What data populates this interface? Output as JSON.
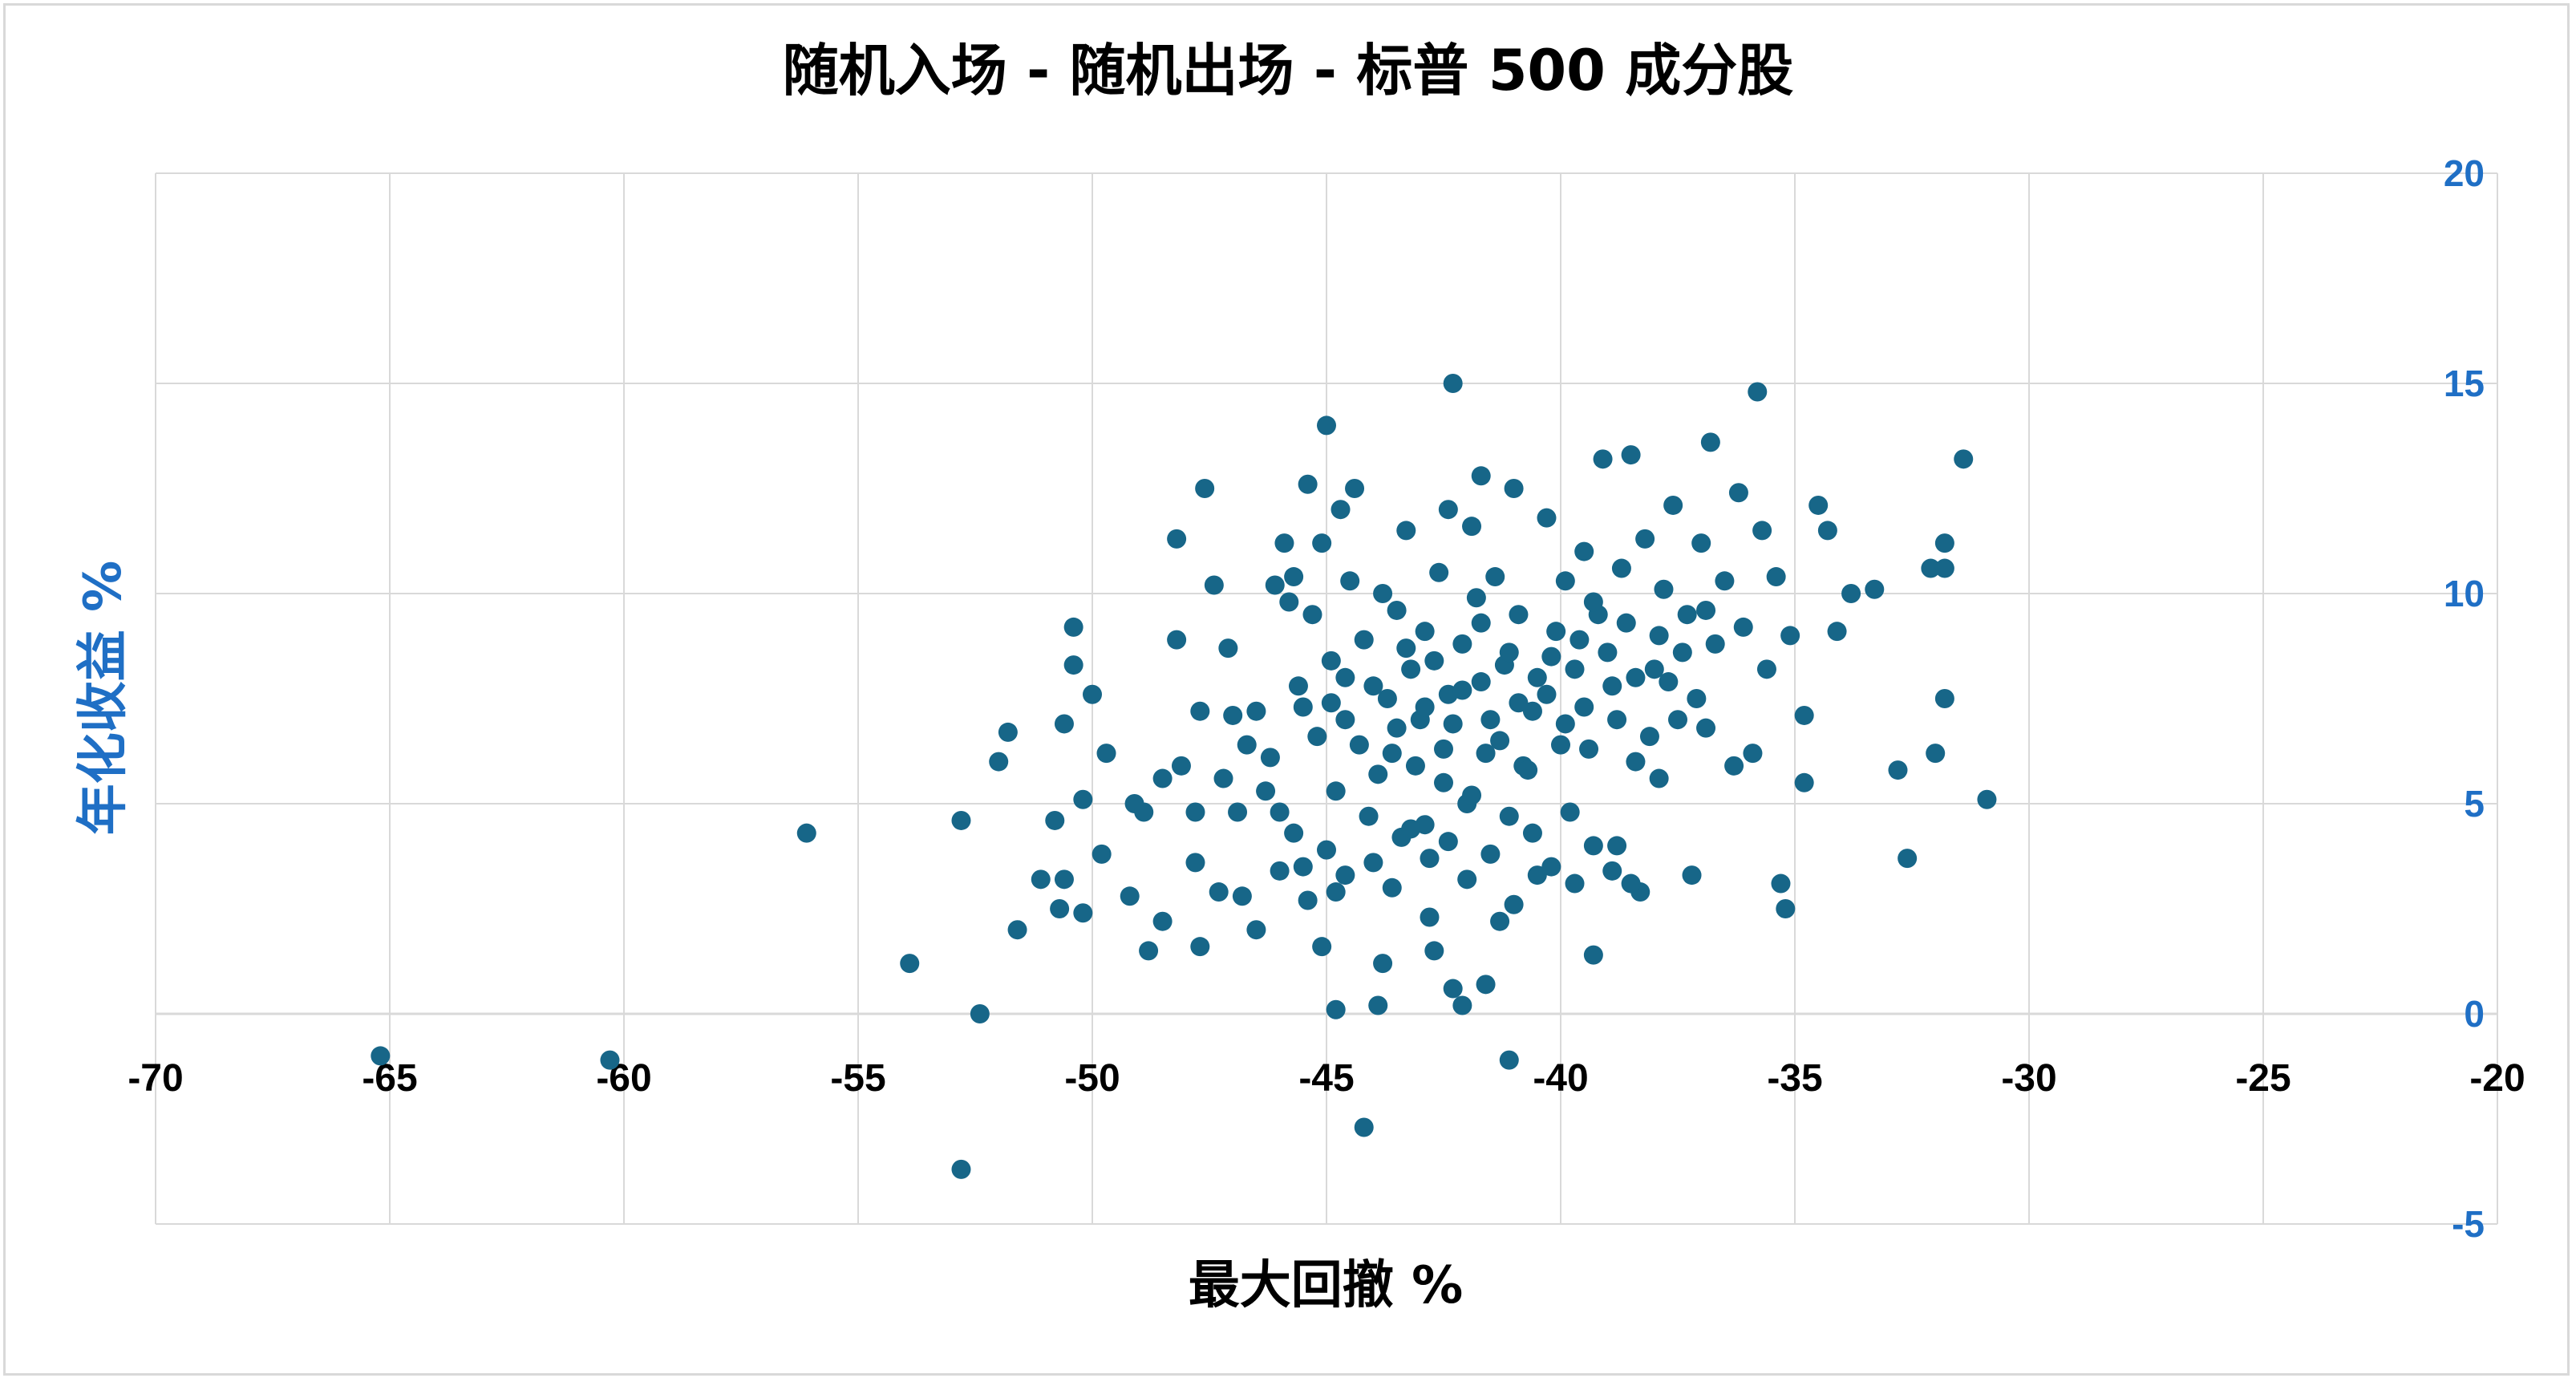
{
  "chart_data": {
    "type": "scatter",
    "title": "随机入场 - 随机出场 - 标普 500 成分股",
    "xlabel": "最大回撤 %",
    "ylabel": "年化收益 %",
    "xlim": [
      -70,
      -20
    ],
    "ylim": [
      -5,
      20
    ],
    "x_ticks": [
      "-70",
      "-65",
      "-60",
      "-55",
      "-50",
      "-45",
      "-40",
      "-35",
      "-30",
      "-25",
      "-20"
    ],
    "y_ticks": [
      "-5",
      "0",
      "5",
      "10",
      "15",
      "20"
    ],
    "y_axis_side": "right",
    "grid": true,
    "colors": {
      "points": "#176688",
      "y_axis_text": "#1f6fc5",
      "grid": "#d9d9d9"
    },
    "series": [
      {
        "points": [
          [
            -65.2,
            -1.0
          ],
          [
            -60.3,
            -1.1
          ],
          [
            -56.1,
            4.3
          ],
          [
            -53.9,
            1.2
          ],
          [
            -52.8,
            4.6
          ],
          [
            -52.8,
            -3.7
          ],
          [
            -52.4,
            0.0
          ],
          [
            -52.0,
            6.0
          ],
          [
            -51.8,
            6.7
          ],
          [
            -51.6,
            2.0
          ],
          [
            -51.1,
            3.2
          ],
          [
            -50.8,
            4.6
          ],
          [
            -50.7,
            2.5
          ],
          [
            -50.6,
            6.9
          ],
          [
            -50.6,
            3.2
          ],
          [
            -50.4,
            9.2
          ],
          [
            -50.4,
            8.3
          ],
          [
            -50.2,
            5.1
          ],
          [
            -50.2,
            2.4
          ],
          [
            -50.0,
            7.6
          ],
          [
            -49.8,
            3.8
          ],
          [
            -49.7,
            6.2
          ],
          [
            -49.2,
            2.8
          ],
          [
            -49.1,
            5.0
          ],
          [
            -48.9,
            4.8
          ],
          [
            -48.8,
            1.5
          ],
          [
            -48.5,
            5.6
          ],
          [
            -48.5,
            2.2
          ],
          [
            -48.2,
            11.3
          ],
          [
            -48.2,
            8.9
          ],
          [
            -48.1,
            5.9
          ],
          [
            -47.8,
            4.8
          ],
          [
            -47.8,
            3.6
          ],
          [
            -47.7,
            7.2
          ],
          [
            -47.6,
            12.5
          ],
          [
            -47.7,
            1.6
          ],
          [
            -47.4,
            10.2
          ],
          [
            -47.3,
            2.9
          ],
          [
            -47.2,
            5.6
          ],
          [
            -47.1,
            8.7
          ],
          [
            -47.0,
            7.1
          ],
          [
            -46.9,
            4.8
          ],
          [
            -46.8,
            2.8
          ],
          [
            -46.7,
            6.4
          ],
          [
            -46.5,
            7.2
          ],
          [
            -46.5,
            2.0
          ],
          [
            -46.2,
            6.1
          ],
          [
            -46.1,
            10.2
          ],
          [
            -46.0,
            4.8
          ],
          [
            -45.9,
            11.2
          ],
          [
            -45.8,
            9.8
          ],
          [
            -45.7,
            10.4
          ],
          [
            -45.6,
            7.8
          ],
          [
            -45.5,
            3.5
          ],
          [
            -45.4,
            12.6
          ],
          [
            -45.3,
            9.5
          ],
          [
            -45.1,
            11.2
          ],
          [
            -45.0,
            14.0
          ],
          [
            -45.1,
            1.6
          ],
          [
            -44.9,
            7.4
          ],
          [
            -44.8,
            5.3
          ],
          [
            -44.8,
            2.9
          ],
          [
            -44.8,
            0.1
          ],
          [
            -44.7,
            12.0
          ],
          [
            -44.6,
            8.0
          ],
          [
            -44.5,
            10.3
          ],
          [
            -44.4,
            12.5
          ],
          [
            -44.2,
            -2.7
          ],
          [
            -44.0,
            7.8
          ],
          [
            -44.0,
            3.6
          ],
          [
            -43.8,
            10.0
          ],
          [
            -43.8,
            1.2
          ],
          [
            -43.9,
            0.2
          ],
          [
            -43.6,
            6.2
          ],
          [
            -43.5,
            9.6
          ],
          [
            -43.4,
            4.2
          ],
          [
            -43.3,
            11.5
          ],
          [
            -43.2,
            8.2
          ],
          [
            -43.0,
            7.0
          ],
          [
            -42.9,
            9.1
          ],
          [
            -42.9,
            4.5
          ],
          [
            -42.8,
            2.3
          ],
          [
            -42.7,
            1.5
          ],
          [
            -42.6,
            10.5
          ],
          [
            -42.5,
            6.3
          ],
          [
            -42.4,
            12.0
          ],
          [
            -42.4,
            7.6
          ],
          [
            -42.3,
            15.0
          ],
          [
            -42.3,
            0.6
          ],
          [
            -42.1,
            8.8
          ],
          [
            -42.1,
            0.2
          ],
          [
            -42.0,
            5.0
          ],
          [
            -41.9,
            11.6
          ],
          [
            -41.8,
            9.9
          ],
          [
            -41.7,
            12.8
          ],
          [
            -41.7,
            7.9
          ],
          [
            -41.6,
            6.2
          ],
          [
            -41.6,
            0.7
          ],
          [
            -41.4,
            10.4
          ],
          [
            -41.3,
            2.2
          ],
          [
            -41.2,
            8.3
          ],
          [
            -41.1,
            4.7
          ],
          [
            -41.0,
            12.5
          ],
          [
            -41.1,
            -1.1
          ],
          [
            -40.9,
            9.5
          ],
          [
            -40.8,
            5.9
          ],
          [
            -40.6,
            7.2
          ],
          [
            -40.5,
            3.3
          ],
          [
            -40.3,
            11.8
          ],
          [
            -40.2,
            8.5
          ],
          [
            -40.0,
            6.4
          ],
          [
            -39.9,
            10.3
          ],
          [
            -39.8,
            4.8
          ],
          [
            -39.6,
            8.9
          ],
          [
            -39.5,
            11.0
          ],
          [
            -39.4,
            6.3
          ],
          [
            -39.3,
            1.4
          ],
          [
            -39.2,
            9.5
          ],
          [
            -39.1,
            13.2
          ],
          [
            -38.9,
            7.8
          ],
          [
            -38.8,
            4.0
          ],
          [
            -38.7,
            10.6
          ],
          [
            -38.5,
            13.3
          ],
          [
            -38.4,
            6.0
          ],
          [
            -38.3,
            2.9
          ],
          [
            -38.2,
            11.3
          ],
          [
            -38.0,
            8.2
          ],
          [
            -37.9,
            5.6
          ],
          [
            -37.8,
            10.1
          ],
          [
            -37.6,
            12.1
          ],
          [
            -37.5,
            7.0
          ],
          [
            -37.3,
            9.5
          ],
          [
            -37.2,
            3.3
          ],
          [
            -37.0,
            11.2
          ],
          [
            -36.9,
            6.8
          ],
          [
            -36.8,
            13.6
          ],
          [
            -36.7,
            8.8
          ],
          [
            -36.5,
            10.3
          ],
          [
            -36.3,
            5.9
          ],
          [
            -36.2,
            12.4
          ],
          [
            -36.1,
            9.2
          ],
          [
            -35.9,
            6.2
          ],
          [
            -35.8,
            14.8
          ],
          [
            -35.7,
            11.5
          ],
          [
            -35.6,
            8.2
          ],
          [
            -35.4,
            10.4
          ],
          [
            -35.3,
            3.1
          ],
          [
            -35.2,
            2.5
          ],
          [
            -35.1,
            9.0
          ],
          [
            -34.8,
            7.1
          ],
          [
            -34.8,
            5.5
          ],
          [
            -34.5,
            12.1
          ],
          [
            -34.3,
            11.5
          ],
          [
            -34.1,
            9.1
          ],
          [
            -33.8,
            10.0
          ],
          [
            -33.3,
            10.1
          ],
          [
            -32.8,
            5.8
          ],
          [
            -32.6,
            3.7
          ],
          [
            -32.1,
            10.6
          ],
          [
            -32.0,
            6.2
          ],
          [
            -31.8,
            11.2
          ],
          [
            -31.8,
            10.6
          ],
          [
            -31.8,
            7.5
          ],
          [
            -31.4,
            13.2
          ],
          [
            -30.9,
            5.1
          ],
          [
            -45.5,
            7.3
          ],
          [
            -45.2,
            6.6
          ],
          [
            -44.9,
            8.4
          ],
          [
            -44.6,
            7.0
          ],
          [
            -44.3,
            6.4
          ],
          [
            -44.2,
            8.9
          ],
          [
            -43.9,
            5.7
          ],
          [
            -43.7,
            7.5
          ],
          [
            -43.5,
            6.8
          ],
          [
            -43.3,
            8.7
          ],
          [
            -43.1,
            5.9
          ],
          [
            -42.9,
            7.3
          ],
          [
            -42.7,
            8.4
          ],
          [
            -42.5,
            5.5
          ],
          [
            -42.3,
            6.9
          ],
          [
            -42.1,
            7.7
          ],
          [
            -41.9,
            5.2
          ],
          [
            -41.7,
            9.3
          ],
          [
            -41.5,
            7.0
          ],
          [
            -41.3,
            6.5
          ],
          [
            -41.1,
            8.6
          ],
          [
            -40.9,
            7.4
          ],
          [
            -40.7,
            5.8
          ],
          [
            -40.5,
            8.0
          ],
          [
            -40.3,
            7.6
          ],
          [
            -40.1,
            9.1
          ],
          [
            -39.9,
            6.9
          ],
          [
            -39.7,
            8.2
          ],
          [
            -39.5,
            7.3
          ],
          [
            -39.3,
            9.8
          ],
          [
            -39.0,
            8.6
          ],
          [
            -38.8,
            7.0
          ],
          [
            -38.6,
            9.3
          ],
          [
            -38.4,
            8.0
          ],
          [
            -38.1,
            6.6
          ],
          [
            -37.9,
            9.0
          ],
          [
            -37.7,
            7.9
          ],
          [
            -37.4,
            8.6
          ],
          [
            -37.1,
            7.5
          ],
          [
            -36.9,
            9.6
          ],
          [
            -46.3,
            5.3
          ],
          [
            -46.0,
            3.4
          ],
          [
            -45.7,
            4.3
          ],
          [
            -45.4,
            2.7
          ],
          [
            -45.0,
            3.9
          ],
          [
            -44.6,
            3.3
          ],
          [
            -44.1,
            4.7
          ],
          [
            -43.6,
            3.0
          ],
          [
            -43.2,
            4.4
          ],
          [
            -42.8,
            3.7
          ],
          [
            -42.4,
            4.1
          ],
          [
            -42.0,
            3.2
          ],
          [
            -41.5,
            3.8
          ],
          [
            -41.0,
            2.6
          ],
          [
            -40.6,
            4.3
          ],
          [
            -40.2,
            3.5
          ],
          [
            -39.7,
            3.1
          ],
          [
            -39.3,
            4.0
          ],
          [
            -38.9,
            3.4
          ],
          [
            -38.5,
            3.1
          ]
        ]
      }
    ]
  }
}
